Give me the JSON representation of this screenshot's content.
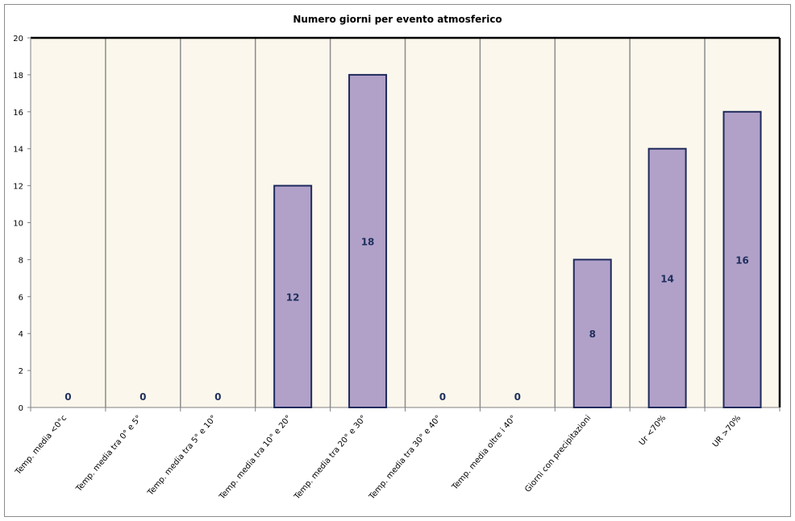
{
  "chart_data": {
    "type": "bar",
    "title": "Numero giorni per evento atmosferico",
    "xlabel": "",
    "ylabel": "",
    "ylim": [
      0,
      20
    ],
    "yticks": [
      0,
      2,
      4,
      6,
      8,
      10,
      12,
      14,
      16,
      18,
      20
    ],
    "categories": [
      "Temp. media <0°c",
      "Temp. media tra 0° e 5°",
      "Temp. media tra 5° e 10°",
      "Temp. media tra 10° e 20°",
      "Temp. media tra 20° e 30°",
      "Temp. media tra 30° e 40°",
      "Temp. media oltre i 40°",
      "Giorni con precipitazioni",
      "Ur <70%",
      "UR >70%"
    ],
    "values": [
      0,
      0,
      0,
      12,
      18,
      0,
      0,
      8,
      14,
      16
    ],
    "data_labels": [
      "0",
      "0",
      "0",
      "12",
      "18",
      "0",
      "0",
      "8",
      "14",
      "16"
    ],
    "grid": "vertical",
    "legend": "none",
    "colors": {
      "bar_fill": "#b1a1c9",
      "bar_stroke": "#1f2a5c",
      "plot_bg": "#fbf7ec",
      "grid": "#8c8c8c",
      "label": "#1f2f5c"
    }
  }
}
